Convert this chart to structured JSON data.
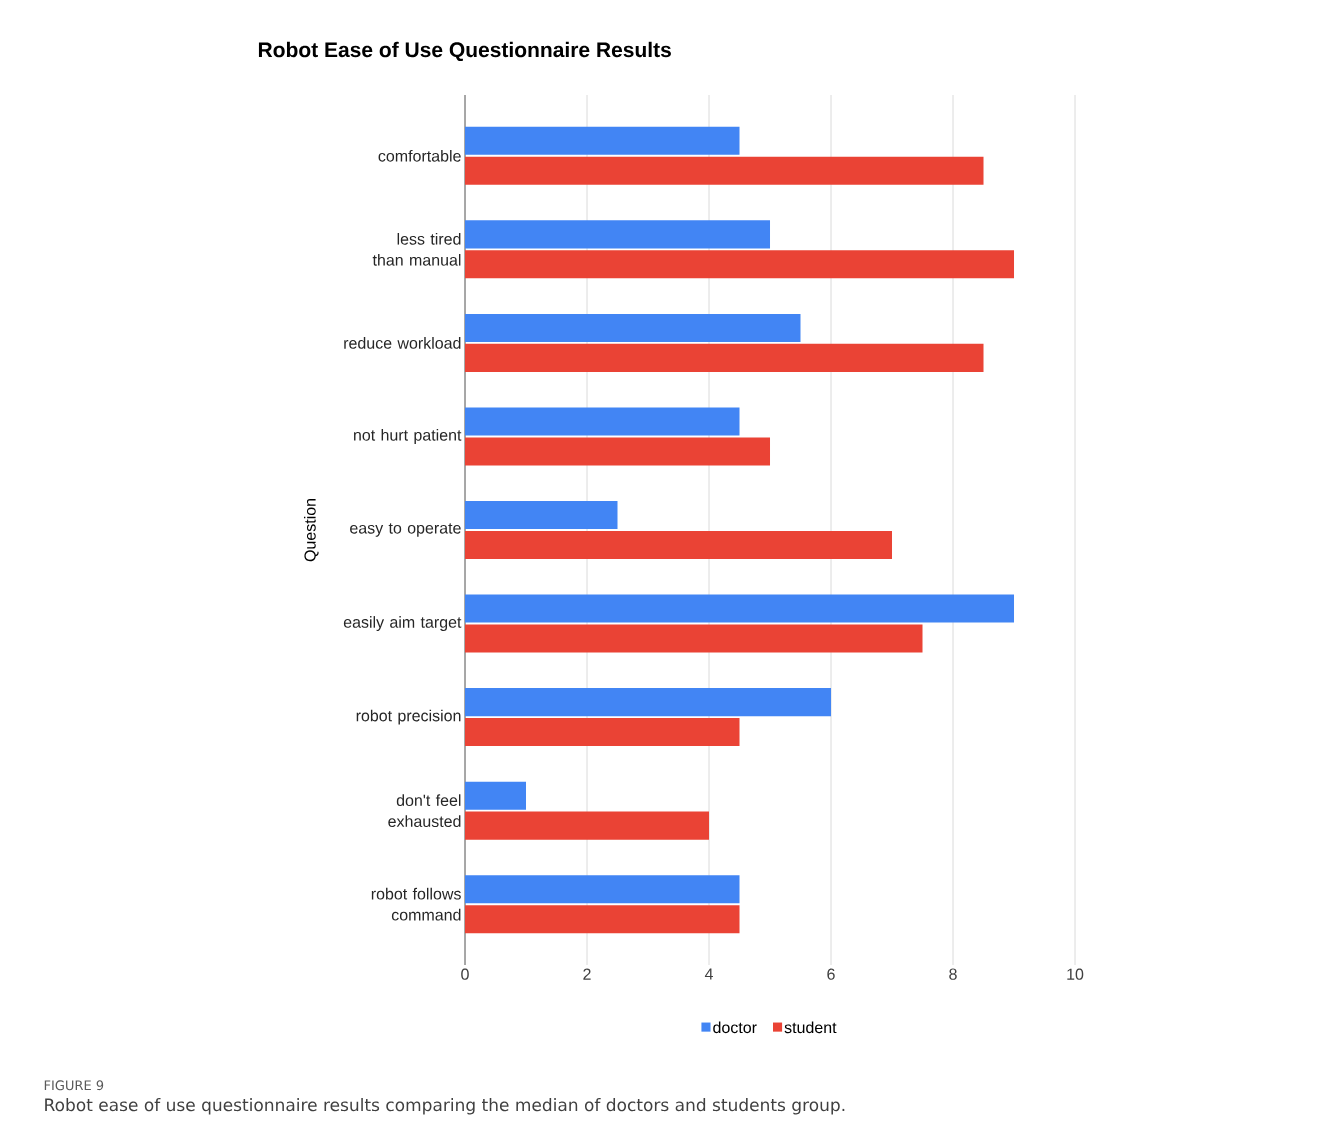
{
  "chart_data": {
    "type": "bar",
    "orientation": "horizontal",
    "title": "Robot Ease of Use Questionnaire Results",
    "ylabel": "Question",
    "categories": [
      "comfortable",
      "less tired than manual",
      "reduce workload",
      "not hurt patient",
      "easy to operate",
      "easily aim target",
      "robot precision",
      "don't feel exhausted",
      "robot follows command"
    ],
    "series": [
      {
        "name": "doctor",
        "color": "#4285f4",
        "values": [
          4.5,
          5,
          5.5,
          4.5,
          2.5,
          9,
          6,
          1,
          4.5
        ]
      },
      {
        "name": "student",
        "color": "#ea4335",
        "values": [
          8.5,
          9,
          8.5,
          5,
          7,
          7.5,
          4.5,
          4,
          4.5
        ]
      }
    ],
    "xlim": [
      0,
      10
    ],
    "xticks": [
      0,
      2,
      4,
      6,
      8,
      10
    ],
    "grid": "x",
    "legend": "bottom",
    "annotations": [
      "FIGURE 9",
      "Robot ease of use questionnaire results comparing the median of doctors and students group."
    ]
  }
}
